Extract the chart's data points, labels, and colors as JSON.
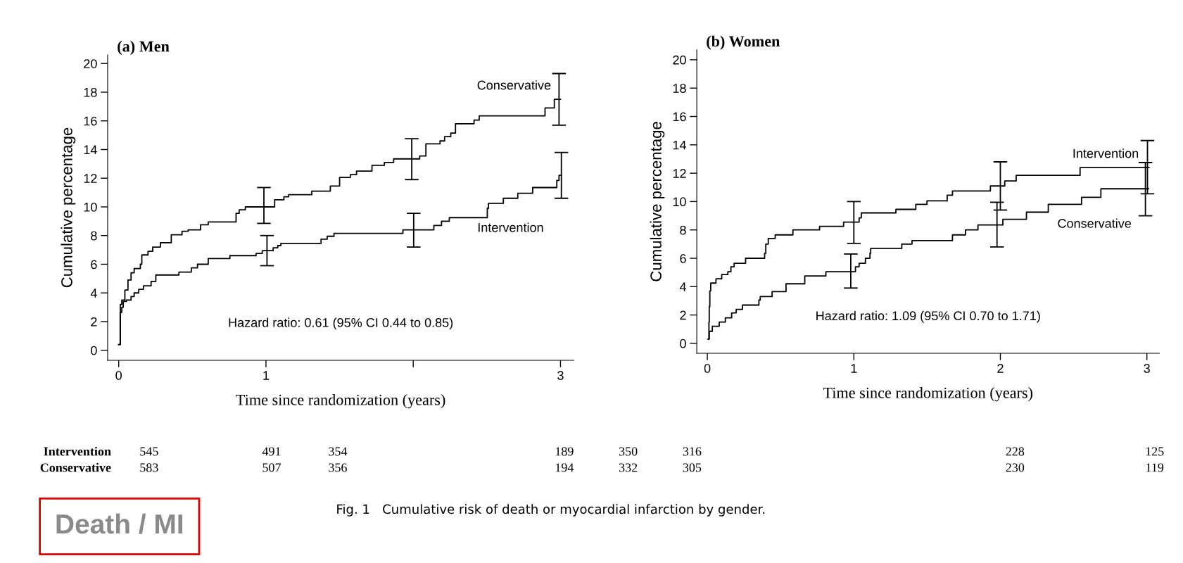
{
  "chart_data": [
    {
      "type": "step",
      "title": "(a) Men",
      "xlabel": "Time since randomization (years)",
      "ylabel": "Cumulative percentage",
      "xlim": [
        -0.075,
        3.09
      ],
      "ylim": [
        -0.7,
        20.6
      ],
      "xticks": [
        0,
        1,
        {
          "value": 2,
          "label": null
        },
        3
      ],
      "yticks": [
        0,
        2,
        4,
        6,
        8,
        10,
        12,
        14,
        16,
        18,
        20
      ],
      "grid": false,
      "legend": false,
      "marker": "none",
      "line_style": "solid",
      "series": [
        {
          "name": "Conservative",
          "color": "#000000",
          "x": [
            0,
            0.011,
            0.021,
            0.042,
            0.063,
            0.084,
            0.105,
            0.147,
            0.157,
            0.199,
            0.231,
            0.283,
            0.357,
            0.43,
            0.472,
            0.556,
            0.608,
            0.797,
            0.818,
            0.86,
            0.986,
            1.059,
            1.122,
            1.154,
            1.311,
            1.437,
            1.5,
            1.573,
            1.615,
            1.72,
            1.804,
            1.867,
            1.99,
            2.044,
            2.086,
            2.182,
            2.213,
            2.255,
            2.287,
            2.413,
            2.448,
            2.895,
            2.958,
            2.99,
            3.0
          ],
          "values": [
            0.4,
            3.2,
            3.5,
            4.2,
            4.9,
            5.4,
            5.7,
            6.0,
            6.65,
            6.9,
            7.2,
            7.5,
            8.05,
            8.3,
            8.4,
            8.75,
            8.95,
            9.55,
            9.8,
            10.0,
            10.0,
            10.5,
            10.7,
            10.85,
            11.1,
            11.45,
            12.05,
            12.25,
            12.5,
            12.9,
            13.1,
            13.35,
            13.35,
            13.55,
            14.4,
            14.6,
            14.9,
            15.15,
            15.8,
            16.05,
            16.35,
            16.9,
            17.5,
            17.5,
            17.5
          ],
          "errors": [
            null,
            null,
            null,
            null,
            null,
            null,
            null,
            null,
            null,
            null,
            null,
            null,
            null,
            null,
            null,
            null,
            null,
            null,
            null,
            null,
            [
              8.85,
              11.35
            ],
            null,
            null,
            null,
            null,
            null,
            null,
            null,
            null,
            null,
            null,
            null,
            [
              11.9,
              14.75
            ],
            null,
            null,
            null,
            null,
            null,
            null,
            null,
            null,
            null,
            null,
            [
              15.7,
              19.3
            ],
            null
          ]
        },
        {
          "name": "Intervention",
          "color": "#000000",
          "x": [
            0,
            0.01,
            0.021,
            0.031,
            0.052,
            0.084,
            0.105,
            0.136,
            0.168,
            0.22,
            0.252,
            0.409,
            0.493,
            0.535,
            0.608,
            0.755,
            0.933,
            0.975,
            1.007,
            1.049,
            1.08,
            1.101,
            1.374,
            1.416,
            1.462,
            1.93,
            2.003,
            2.14,
            2.192,
            2.245,
            2.503,
            2.511,
            2.612,
            2.71,
            2.811,
            2.975,
            2.99,
            3.006
          ],
          "values": [
            0.4,
            2.65,
            3.0,
            3.4,
            3.5,
            3.75,
            4.0,
            4.25,
            4.5,
            4.8,
            5.25,
            5.45,
            5.75,
            6.0,
            6.4,
            6.6,
            6.75,
            6.95,
            6.95,
            7.15,
            7.3,
            7.45,
            7.75,
            7.95,
            8.15,
            8.4,
            8.4,
            8.7,
            9.0,
            9.25,
            9.9,
            10.25,
            10.6,
            10.95,
            11.35,
            11.85,
            12.2,
            12.2
          ],
          "errors": [
            null,
            null,
            null,
            null,
            null,
            null,
            null,
            null,
            null,
            null,
            null,
            null,
            null,
            null,
            null,
            null,
            null,
            null,
            [
              5.9,
              8.0
            ],
            null,
            null,
            null,
            null,
            null,
            null,
            null,
            [
              7.2,
              9.55
            ],
            null,
            null,
            null,
            null,
            null,
            null,
            null,
            null,
            null,
            null,
            [
              10.6,
              13.8
            ]
          ]
        }
      ],
      "annotations": [
        "Hazard ratio: 0.61 (95% CI 0.44 to 0.85)",
        "Intervention",
        "Conservative",
        "545",
        "491",
        "354",
        "189",
        "583",
        "507",
        "356",
        "194",
        "Death / MI"
      ]
    },
    {
      "type": "step",
      "title": "(b) Women",
      "xlabel": "Time since randomization (years)",
      "ylabel": "Cumulative percentage",
      "xlim": [
        -0.072,
        3.085
      ],
      "ylim": [
        -0.7,
        20.7
      ],
      "xticks": [
        0,
        1,
        2,
        3
      ],
      "yticks": [
        0,
        2,
        4,
        6,
        8,
        10,
        12,
        14,
        16,
        18,
        20
      ],
      "grid": false,
      "legend": false,
      "marker": "none",
      "line_style": "solid",
      "series": [
        {
          "name": "Intervention",
          "color": "#000000",
          "x": [
            0.006,
            0.011,
            0.013,
            0.017,
            0.023,
            0.059,
            0.098,
            0.14,
            0.161,
            0.183,
            0.261,
            0.391,
            0.399,
            0.416,
            0.463,
            0.584,
            0.766,
            0.93,
            1.0,
            1.036,
            1.051,
            1.287,
            1.423,
            1.499,
            1.637,
            1.673,
            1.932,
            2.0,
            2.03,
            2.108,
            2.544,
            3.004,
            3.015
          ],
          "values": [
            0.3,
            1.5,
            2.6,
            3.7,
            4.25,
            4.55,
            4.85,
            5.05,
            5.4,
            5.65,
            6.0,
            6.35,
            7.0,
            7.4,
            7.65,
            8.0,
            8.25,
            8.55,
            8.55,
            8.85,
            9.2,
            9.45,
            9.8,
            10.05,
            10.45,
            10.75,
            11.1,
            11.1,
            11.45,
            11.85,
            12.4,
            12.4,
            12.4
          ],
          "errors": [
            null,
            null,
            null,
            null,
            null,
            null,
            null,
            null,
            null,
            null,
            null,
            null,
            null,
            null,
            null,
            null,
            null,
            null,
            [
              7.05,
              10.0
            ],
            null,
            null,
            null,
            null,
            null,
            null,
            null,
            null,
            [
              9.4,
              12.8
            ],
            null,
            null,
            null,
            [
              10.55,
              14.3
            ],
            null
          ]
        },
        {
          "name": "Conservative",
          "color": "#000000",
          "x": [
            0.006,
            0.013,
            0.034,
            0.081,
            0.123,
            0.166,
            0.197,
            0.24,
            0.352,
            0.361,
            0.442,
            0.537,
            0.665,
            0.809,
            0.979,
            1.011,
            1.036,
            1.079,
            1.11,
            1.115,
            1.327,
            1.397,
            1.673,
            1.762,
            1.847,
            1.977,
            2.017,
            2.178,
            2.327,
            2.554,
            2.686,
            2.99,
            3.011
          ],
          "values": [
            0.3,
            0.85,
            1.2,
            1.5,
            1.8,
            2.15,
            2.4,
            2.7,
            3.05,
            3.3,
            3.65,
            4.2,
            4.75,
            5.05,
            5.05,
            5.4,
            5.65,
            6.0,
            6.35,
            6.7,
            7.0,
            7.25,
            7.65,
            8.0,
            8.35,
            8.35,
            8.75,
            9.25,
            9.8,
            10.3,
            10.9,
            10.9,
            10.9
          ],
          "errors": [
            null,
            null,
            null,
            null,
            null,
            null,
            null,
            null,
            null,
            null,
            null,
            null,
            null,
            null,
            [
              3.9,
              6.3
            ],
            null,
            null,
            null,
            null,
            null,
            null,
            null,
            null,
            null,
            null,
            [
              6.8,
              9.95
            ],
            null,
            null,
            null,
            null,
            null,
            [
              9.0,
              12.75
            ],
            null
          ]
        }
      ],
      "annotations": [
        "Hazard ratio: 1.09 (95% CI 0.70 to 1.71)",
        "350",
        "316",
        "228",
        "125",
        "332",
        "305",
        "230",
        "119",
        "Fig. 1   Cumulative risk of death or myocardial infarction by gender."
      ]
    }
  ]
}
